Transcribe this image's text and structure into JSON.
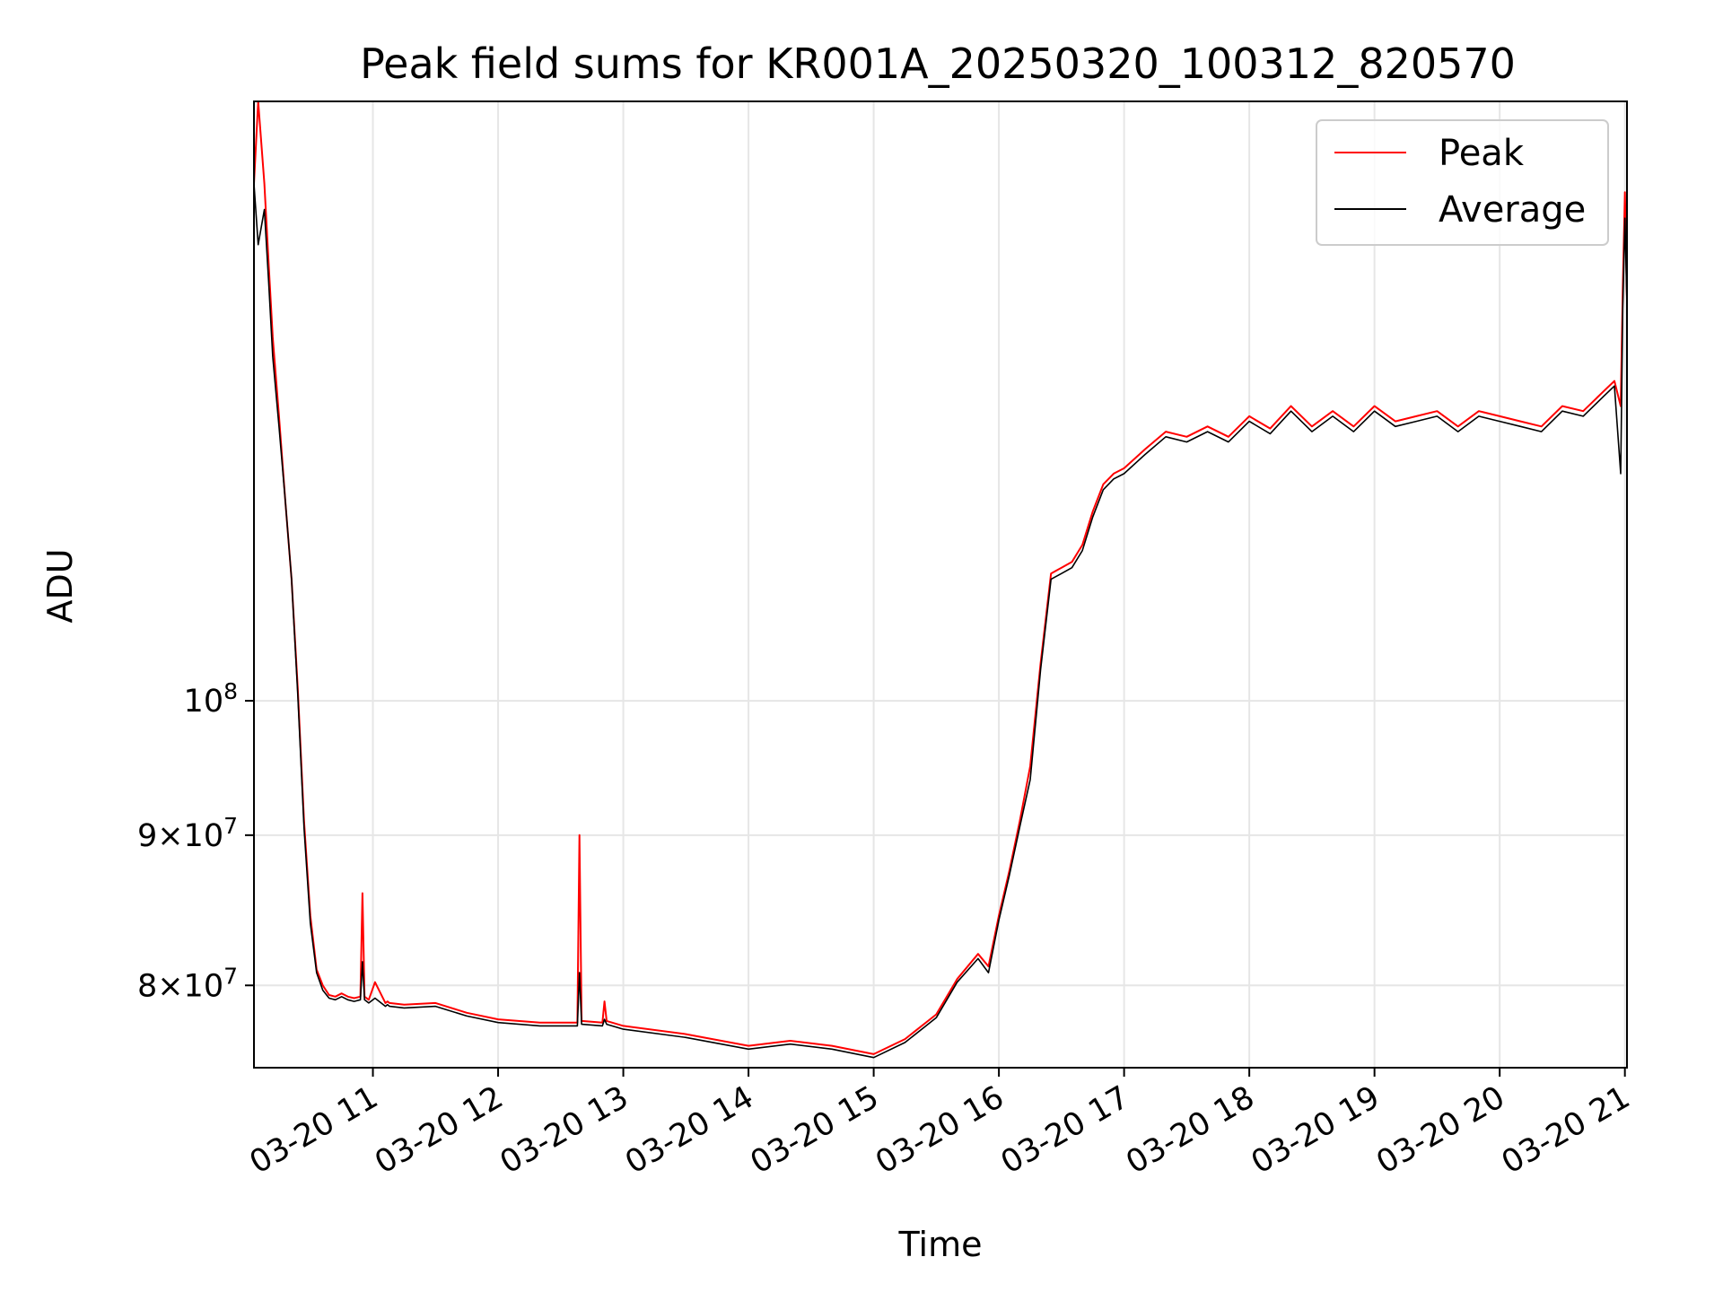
{
  "chart_data": {
    "type": "line",
    "title": "Peak field sums for KR001A_20250320_100312_820570",
    "xlabel": "Time",
    "ylabel": "ADU",
    "yscale": "log",
    "ylim": [
      75000000,
      160000000
    ],
    "xlim": [
      "03-20 10:03",
      "03-20 21:01"
    ],
    "grid": true,
    "legend_position": "top-right",
    "x_ticks": [
      "03-20 11",
      "03-20 12",
      "03-20 13",
      "03-20 14",
      "03-20 15",
      "03-20 16",
      "03-20 17",
      "03-20 18",
      "03-20 19",
      "03-20 20",
      "03-20 21"
    ],
    "y_ticks": [
      {
        "value": 80000000,
        "mantissa": "8",
        "base": "10",
        "exponent": "7"
      },
      {
        "value": 90000000,
        "mantissa": "9",
        "base": "10",
        "exponent": "7"
      },
      {
        "value": 100000000,
        "mantissa": "",
        "base": "10",
        "exponent": "8"
      }
    ],
    "series": [
      {
        "name": "Peak",
        "color": "#ff0000",
        "x": [
          "03-20 10:03",
          "03-20 10:05",
          "03-20 10:08",
          "03-20 10:10",
          "03-20 10:12",
          "03-20 10:15",
          "03-20 10:18",
          "03-20 10:21",
          "03-20 10:24",
          "03-20 10:27",
          "03-20 10:30",
          "03-20 10:33",
          "03-20 10:36",
          "03-20 10:39",
          "03-20 10:42",
          "03-20 10:45",
          "03-20 10:48",
          "03-20 10:51",
          "03-20 10:54",
          "03-20 10:55",
          "03-20 10:56",
          "03-20 10:58",
          "03-20 11:01",
          "03-20 11:06",
          "03-20 11:07",
          "03-20 11:08",
          "03-20 11:15",
          "03-20 11:30",
          "03-20 11:45",
          "03-20 12:00",
          "03-20 12:20",
          "03-20 12:38",
          "03-20 12:39",
          "03-20 12:40",
          "03-20 12:50",
          "03-20 12:51",
          "03-20 12:52",
          "03-20 13:00",
          "03-20 13:30",
          "03-20 14:00",
          "03-20 14:20",
          "03-20 14:40",
          "03-20 15:00",
          "03-20 15:15",
          "03-20 15:30",
          "03-20 15:40",
          "03-20 15:50",
          "03-20 15:55",
          "03-20 16:00",
          "03-20 16:05",
          "03-20 16:10",
          "03-20 16:15",
          "03-20 16:20",
          "03-20 16:25",
          "03-20 16:30",
          "03-20 16:35",
          "03-20 16:40",
          "03-20 16:45",
          "03-20 16:50",
          "03-20 16:55",
          "03-20 17:00",
          "03-20 17:10",
          "03-20 17:20",
          "03-20 17:30",
          "03-20 17:40",
          "03-20 17:50",
          "03-20 18:00",
          "03-20 18:10",
          "03-20 18:20",
          "03-20 18:30",
          "03-20 18:40",
          "03-20 18:50",
          "03-20 19:00",
          "03-20 19:10",
          "03-20 19:20",
          "03-20 19:30",
          "03-20 19:40",
          "03-20 19:50",
          "03-20 20:00",
          "03-20 20:10",
          "03-20 20:20",
          "03-20 20:30",
          "03-20 20:40",
          "03-20 20:50",
          "03-20 20:55",
          "03-20 20:58",
          "03-20 20:59",
          "03-20 21:00",
          "03-20 21:01"
        ],
        "values": [
          150000000,
          160000000,
          150000000,
          141000000,
          133000000,
          125000000,
          117000000,
          110000000,
          101000000,
          91000000,
          84500000,
          81000000,
          80000000,
          79400000,
          79300000,
          79500000,
          79300000,
          79200000,
          79300000,
          86000000,
          79300000,
          79100000,
          80200000,
          78900000,
          79000000,
          78900000,
          78800000,
          78900000,
          78300000,
          77900000,
          77700000,
          77700000,
          90000000,
          77800000,
          77700000,
          79000000,
          77800000,
          77500000,
          77000000,
          76300000,
          76600000,
          76300000,
          75800000,
          76700000,
          78200000,
          80400000,
          82000000,
          81200000,
          84500000,
          87500000,
          91000000,
          95000000,
          103000000,
          110500000,
          111000000,
          111500000,
          113000000,
          116000000,
          118500000,
          119500000,
          120000000,
          121800000,
          123500000,
          123000000,
          124000000,
          123000000,
          125000000,
          123800000,
          126000000,
          124000000,
          125500000,
          124000000,
          126000000,
          124500000,
          125000000,
          125500000,
          124000000,
          125500000,
          125000000,
          124500000,
          124000000,
          126000000,
          125500000,
          127500000,
          128500000,
          126000000,
          138000000,
          149000000,
          137000000
        ]
      },
      {
        "name": "Average",
        "color": "#000000",
        "x": [
          "03-20 10:03",
          "03-20 10:05",
          "03-20 10:08",
          "03-20 10:10",
          "03-20 10:12",
          "03-20 10:15",
          "03-20 10:18",
          "03-20 10:21",
          "03-20 10:24",
          "03-20 10:27",
          "03-20 10:30",
          "03-20 10:33",
          "03-20 10:36",
          "03-20 10:39",
          "03-20 10:42",
          "03-20 10:45",
          "03-20 10:48",
          "03-20 10:51",
          "03-20 10:54",
          "03-20 10:55",
          "03-20 10:56",
          "03-20 10:58",
          "03-20 11:01",
          "03-20 11:06",
          "03-20 11:07",
          "03-20 11:08",
          "03-20 11:15",
          "03-20 11:30",
          "03-20 11:45",
          "03-20 12:00",
          "03-20 12:20",
          "03-20 12:38",
          "03-20 12:39",
          "03-20 12:40",
          "03-20 12:50",
          "03-20 12:51",
          "03-20 12:52",
          "03-20 13:00",
          "03-20 13:30",
          "03-20 14:00",
          "03-20 14:20",
          "03-20 14:40",
          "03-20 15:00",
          "03-20 15:15",
          "03-20 15:30",
          "03-20 15:40",
          "03-20 15:50",
          "03-20 15:55",
          "03-20 16:00",
          "03-20 16:05",
          "03-20 16:10",
          "03-20 16:15",
          "03-20 16:20",
          "03-20 16:25",
          "03-20 16:30",
          "03-20 16:35",
          "03-20 16:40",
          "03-20 16:45",
          "03-20 16:50",
          "03-20 16:55",
          "03-20 17:00",
          "03-20 17:10",
          "03-20 17:20",
          "03-20 17:30",
          "03-20 17:40",
          "03-20 17:50",
          "03-20 18:00",
          "03-20 18:10",
          "03-20 18:20",
          "03-20 18:30",
          "03-20 18:40",
          "03-20 18:50",
          "03-20 19:00",
          "03-20 19:10",
          "03-20 19:20",
          "03-20 19:30",
          "03-20 19:40",
          "03-20 19:50",
          "03-20 20:00",
          "03-20 20:10",
          "03-20 20:20",
          "03-20 20:30",
          "03-20 20:40",
          "03-20 20:50",
          "03-20 20:55",
          "03-20 20:58",
          "03-20 20:59",
          "03-20 21:00",
          "03-20 21:01"
        ],
        "values": [
          150000000,
          143000000,
          147000000,
          139000000,
          131000000,
          124000000,
          117000000,
          110000000,
          100500000,
          90500000,
          84000000,
          80800000,
          79700000,
          79200000,
          79100000,
          79300000,
          79100000,
          79000000,
          79100000,
          81500000,
          79100000,
          78900000,
          79200000,
          78700000,
          78800000,
          78700000,
          78600000,
          78700000,
          78100000,
          77700000,
          77500000,
          77500000,
          80800000,
          77600000,
          77500000,
          77900000,
          77600000,
          77300000,
          76800000,
          76100000,
          76400000,
          76100000,
          75600000,
          76500000,
          78000000,
          80200000,
          81700000,
          80800000,
          84200000,
          87200000,
          90600000,
          94000000,
          102500000,
          110000000,
          110500000,
          111000000,
          112500000,
          115500000,
          118000000,
          119000000,
          119500000,
          121300000,
          123000000,
          122500000,
          123500000,
          122500000,
          124500000,
          123300000,
          125500000,
          123500000,
          125000000,
          123500000,
          125500000,
          124000000,
          124500000,
          125000000,
          123500000,
          125000000,
          124500000,
          124000000,
          123500000,
          125500000,
          125000000,
          127000000,
          128000000,
          119500000,
          136000000,
          146000000,
          136500000
        ]
      }
    ]
  }
}
